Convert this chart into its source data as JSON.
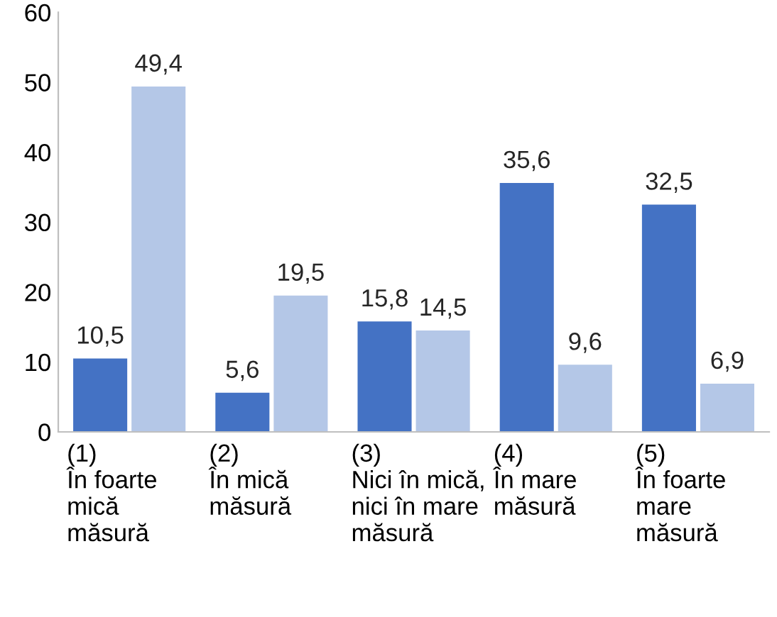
{
  "chart_data": {
    "type": "bar",
    "categories": [
      "(1)\nÎn foarte\nmică\nmăsură",
      "(2)\nÎn mică\nmăsură",
      "(3)\nNici în mică,\nnici în mare\nmăsură",
      "(4)\nÎn mare\nmăsură",
      "(5)\nÎn foarte\nmare\nmăsură"
    ],
    "series": [
      {
        "color": "#4472c4",
        "values": [
          10.5,
          5.6,
          15.8,
          35.6,
          32.5
        ],
        "value_labels": [
          "10,5",
          "5,6",
          "15,8",
          "35,6",
          "32,5"
        ]
      },
      {
        "color": "#b4c7e7",
        "values": [
          49.4,
          19.5,
          14.5,
          9.6,
          6.9
        ],
        "value_labels": [
          "49,4",
          "19,5",
          "14,5",
          "9,6",
          "6,9"
        ]
      }
    ],
    "ylim": [
      0,
      60
    ],
    "yticks": [
      0,
      10,
      20,
      30,
      40,
      50,
      60
    ],
    "grid": false
  }
}
